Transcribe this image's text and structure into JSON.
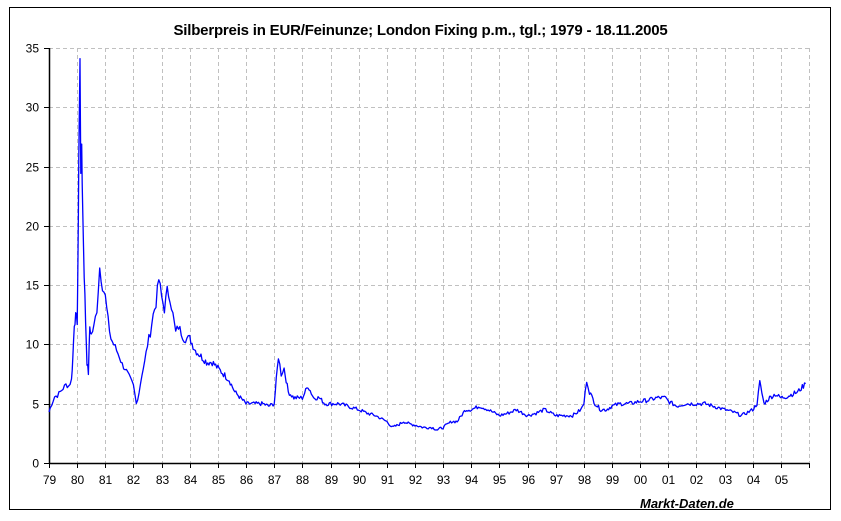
{
  "chart_data": {
    "type": "line",
    "title": "Silberpreis in EUR/Feinunze; London Fixing p.m., tgl.; 1979 - 18.11.2005",
    "xlabel": "",
    "ylabel": "",
    "ylim": [
      0,
      35
    ],
    "yticks": [
      0,
      5,
      10,
      15,
      20,
      25,
      30,
      35
    ],
    "xticks": [
      "79",
      "80",
      "81",
      "82",
      "83",
      "84",
      "85",
      "86",
      "87",
      "88",
      "89",
      "90",
      "91",
      "92",
      "93",
      "94",
      "95",
      "96",
      "97",
      "98",
      "99",
      "00",
      "01",
      "02",
      "03",
      "04",
      "05"
    ],
    "grid": true,
    "legend": null,
    "annotation": "Markt-Daten.de",
    "line_color": "#0000ff",
    "series": [
      {
        "name": "Silberpreis EUR/Feinunze",
        "x": [
          1979.0,
          1979.1,
          1979.2,
          1979.3,
          1979.4,
          1979.5,
          1979.6,
          1979.7,
          1979.8,
          1979.85,
          1979.9,
          1979.95,
          1980.0,
          1980.03,
          1980.06,
          1980.1,
          1980.13,
          1980.16,
          1980.2,
          1980.25,
          1980.3,
          1980.35,
          1980.4,
          1980.45,
          1980.5,
          1980.6,
          1980.7,
          1980.8,
          1980.9,
          1981.0,
          1981.1,
          1981.2,
          1981.3,
          1981.4,
          1981.5,
          1981.6,
          1981.7,
          1981.8,
          1981.9,
          1982.0,
          1982.1,
          1982.2,
          1982.3,
          1982.4,
          1982.5,
          1982.6,
          1982.7,
          1982.8,
          1982.9,
          1983.0,
          1983.1,
          1983.2,
          1983.3,
          1983.4,
          1983.5,
          1983.6,
          1983.7,
          1983.8,
          1983.9,
          1984.0,
          1984.2,
          1984.4,
          1984.6,
          1984.8,
          1985.0,
          1985.2,
          1985.4,
          1985.6,
          1985.8,
          1986.0,
          1986.2,
          1986.4,
          1986.6,
          1986.8,
          1987.0,
          1987.15,
          1987.25,
          1987.35,
          1987.5,
          1987.7,
          1987.9,
          1988.0,
          1988.2,
          1988.4,
          1988.6,
          1988.8,
          1989.0,
          1989.3,
          1989.6,
          1990.0,
          1990.3,
          1990.6,
          1991.0,
          1991.2,
          1991.4,
          1991.6,
          1991.8,
          1992.0,
          1992.3,
          1992.6,
          1992.8,
          1993.0,
          1993.3,
          1993.5,
          1993.8,
          1994.0,
          1994.3,
          1994.6,
          1995.0,
          1995.3,
          1995.6,
          1996.0,
          1996.3,
          1996.6,
          1997.0,
          1997.3,
          1997.6,
          1997.9,
          1998.0,
          1998.1,
          1998.2,
          1998.4,
          1998.6,
          1998.8,
          1999.0,
          1999.3,
          1999.6,
          2000.0,
          2000.3,
          2000.6,
          2000.9,
          2001.0,
          2001.3,
          2001.6,
          2002.0,
          2002.3,
          2002.6,
          2003.0,
          2003.3,
          2003.6,
          2004.0,
          2004.15,
          2004.25,
          2004.4,
          2004.6,
          2004.8,
          2005.0,
          2005.2,
          2005.4,
          2005.6,
          2005.8,
          2005.88
        ],
        "values": [
          4.3,
          5.0,
          5.6,
          5.7,
          6.0,
          6.3,
          6.6,
          6.5,
          7.0,
          9.0,
          11.8,
          12.3,
          12.0,
          17.0,
          26.0,
          33.7,
          25.0,
          27.0,
          21.0,
          16.0,
          12.0,
          8.5,
          7.6,
          11.5,
          10.8,
          11.5,
          13.0,
          16.5,
          15.0,
          14.0,
          12.0,
          10.5,
          10.0,
          9.5,
          9.0,
          8.3,
          8.0,
          7.5,
          7.0,
          6.5,
          5.0,
          6.0,
          7.5,
          8.5,
          10.0,
          11.0,
          12.5,
          13.5,
          15.5,
          14.0,
          13.0,
          14.5,
          14.0,
          12.5,
          11.0,
          11.5,
          11.0,
          10.5,
          10.5,
          10.5,
          9.5,
          9.0,
          8.5,
          8.5,
          8.0,
          7.5,
          7.0,
          6.0,
          5.5,
          5.0,
          5.0,
          5.0,
          5.0,
          4.8,
          5.0,
          9.0,
          7.5,
          8.0,
          6.0,
          5.5,
          5.5,
          5.5,
          6.5,
          5.5,
          5.5,
          5.0,
          5.0,
          5.0,
          4.8,
          4.5,
          4.2,
          4.0,
          3.5,
          3.0,
          3.2,
          3.5,
          3.3,
          3.2,
          3.0,
          3.0,
          2.8,
          3.0,
          3.5,
          3.5,
          4.5,
          4.5,
          4.8,
          4.5,
          4.0,
          4.2,
          4.5,
          4.0,
          4.2,
          4.5,
          4.0,
          4.0,
          4.0,
          4.5,
          5.0,
          7.0,
          6.0,
          5.0,
          4.5,
          4.5,
          4.8,
          5.0,
          5.0,
          5.2,
          5.3,
          5.5,
          5.5,
          5.2,
          4.8,
          5.0,
          5.0,
          5.0,
          4.8,
          4.5,
          4.3,
          4.0,
          4.5,
          5.0,
          6.8,
          5.0,
          5.5,
          5.8,
          5.5,
          5.6,
          5.8,
          6.0,
          6.5,
          6.7
        ]
      }
    ]
  },
  "footer": {
    "credit": "Markt-Daten.de"
  }
}
